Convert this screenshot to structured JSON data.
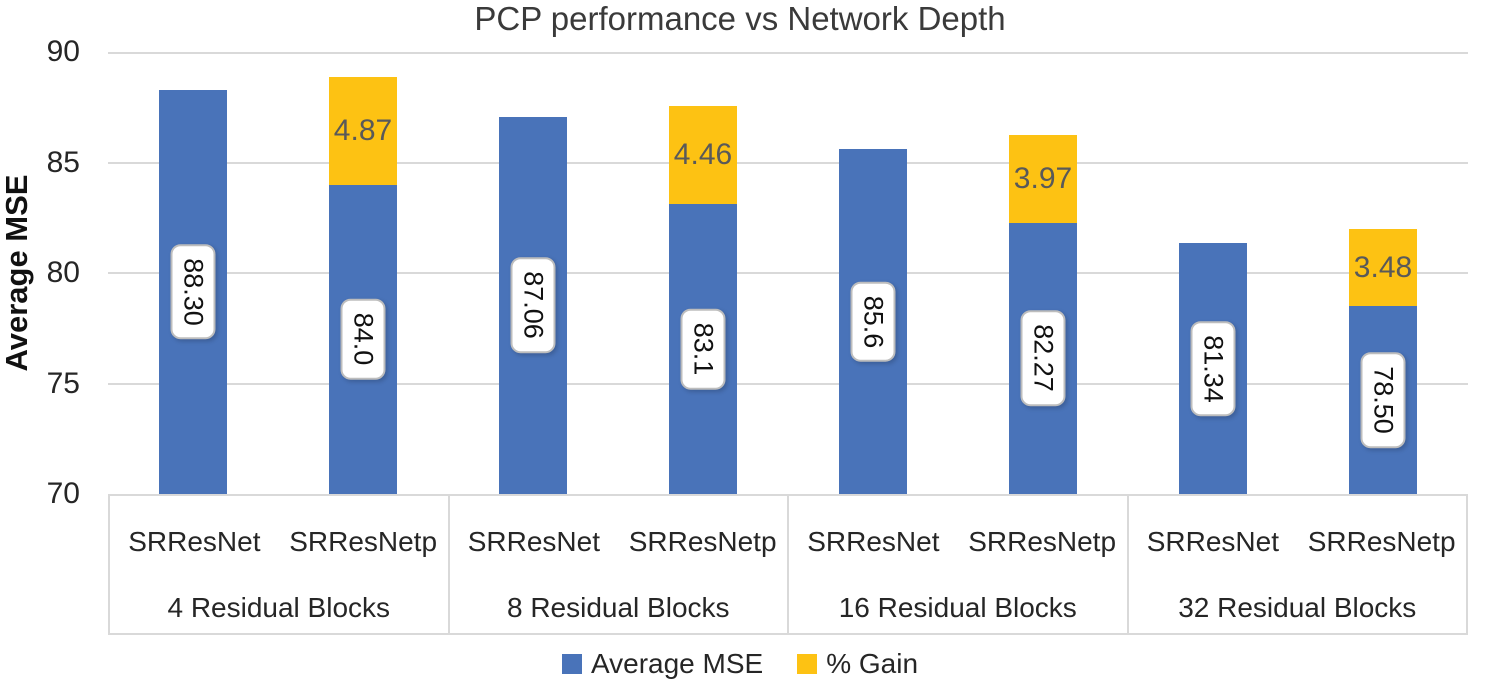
{
  "title": "PCP performance vs Network Depth",
  "colors": {
    "mse_bar": "#4973B9",
    "gain_bar": "#FDC213",
    "gridline": "#D9D9D9",
    "tick_text": "#262626",
    "gain_text": "#595959",
    "title_text": "#3A3A3A"
  },
  "y_axis": {
    "label": "Average MSE",
    "ticks": [
      "90",
      "85",
      "80",
      "75",
      "70"
    ],
    "min": 70,
    "max": 90
  },
  "legend": [
    {
      "label": "Average MSE",
      "color_key": "mse_bar"
    },
    {
      "label": "% Gain",
      "color_key": "gain_bar"
    }
  ],
  "chart_data": {
    "type": "bar",
    "stacked": true,
    "title": "PCP performance vs Network Depth",
    "ylabel": "Average MSE",
    "ylim": [
      70,
      90
    ],
    "grid": true,
    "legend_position": "bottom",
    "series_names": [
      "Average MSE",
      "% Gain"
    ],
    "groups": [
      {
        "category": "4 Residual Blocks",
        "bars": [
          {
            "series": "SRResNet",
            "mse": 88.3,
            "mse_label": "88.30",
            "gain": null,
            "gain_label": null
          },
          {
            "series": "SRResNetp",
            "mse": 84.0,
            "mse_label": "84.0",
            "gain": 4.87,
            "gain_label": "4.87"
          }
        ]
      },
      {
        "category": "8 Residual Blocks",
        "bars": [
          {
            "series": "SRResNet",
            "mse": 87.06,
            "mse_label": "87.06",
            "gain": null,
            "gain_label": null
          },
          {
            "series": "SRResNetp",
            "mse": 83.1,
            "mse_label": "83.1",
            "gain": 4.46,
            "gain_label": "4.46"
          }
        ]
      },
      {
        "category": "16 Residual Blocks",
        "bars": [
          {
            "series": "SRResNet",
            "mse": 85.6,
            "mse_label": "85.6",
            "gain": null,
            "gain_label": null
          },
          {
            "series": "SRResNetp",
            "mse": 82.27,
            "mse_label": "82.27",
            "gain": 3.97,
            "gain_label": "3.97"
          }
        ]
      },
      {
        "category": "32 Residual Blocks",
        "bars": [
          {
            "series": "SRResNet",
            "mse": 81.34,
            "mse_label": "81.34",
            "gain": null,
            "gain_label": null
          },
          {
            "series": "SRResNetp",
            "mse": 78.5,
            "mse_label": "78.50",
            "gain": 3.48,
            "gain_label": "3.48"
          }
        ]
      }
    ]
  }
}
